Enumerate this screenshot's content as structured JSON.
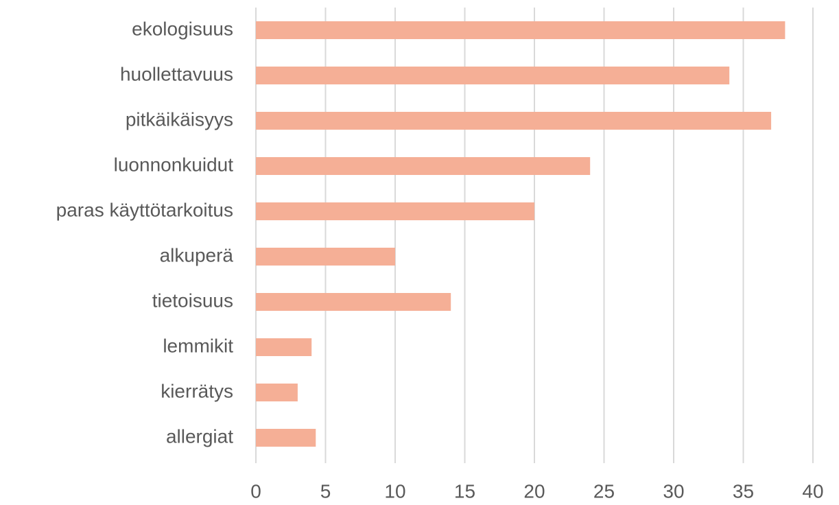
{
  "chart_data": {
    "type": "bar",
    "orientation": "horizontal",
    "categories": [
      "ekologisuus",
      "huollettavuus",
      "pitkäikäisyys",
      "luonnonkuidut",
      "paras käyttötarkoitus",
      "alkuperä",
      "tietoisuus",
      "lemmikit",
      "kierrätys",
      "allergiat"
    ],
    "values": [
      38,
      34,
      37,
      24,
      20,
      10,
      14,
      4,
      3,
      4.3
    ],
    "color": "#f5af96",
    "xlim": [
      0,
      40
    ],
    "xticks": [
      0,
      5,
      10,
      15,
      20,
      25,
      30,
      35,
      40
    ],
    "grid": true
  }
}
